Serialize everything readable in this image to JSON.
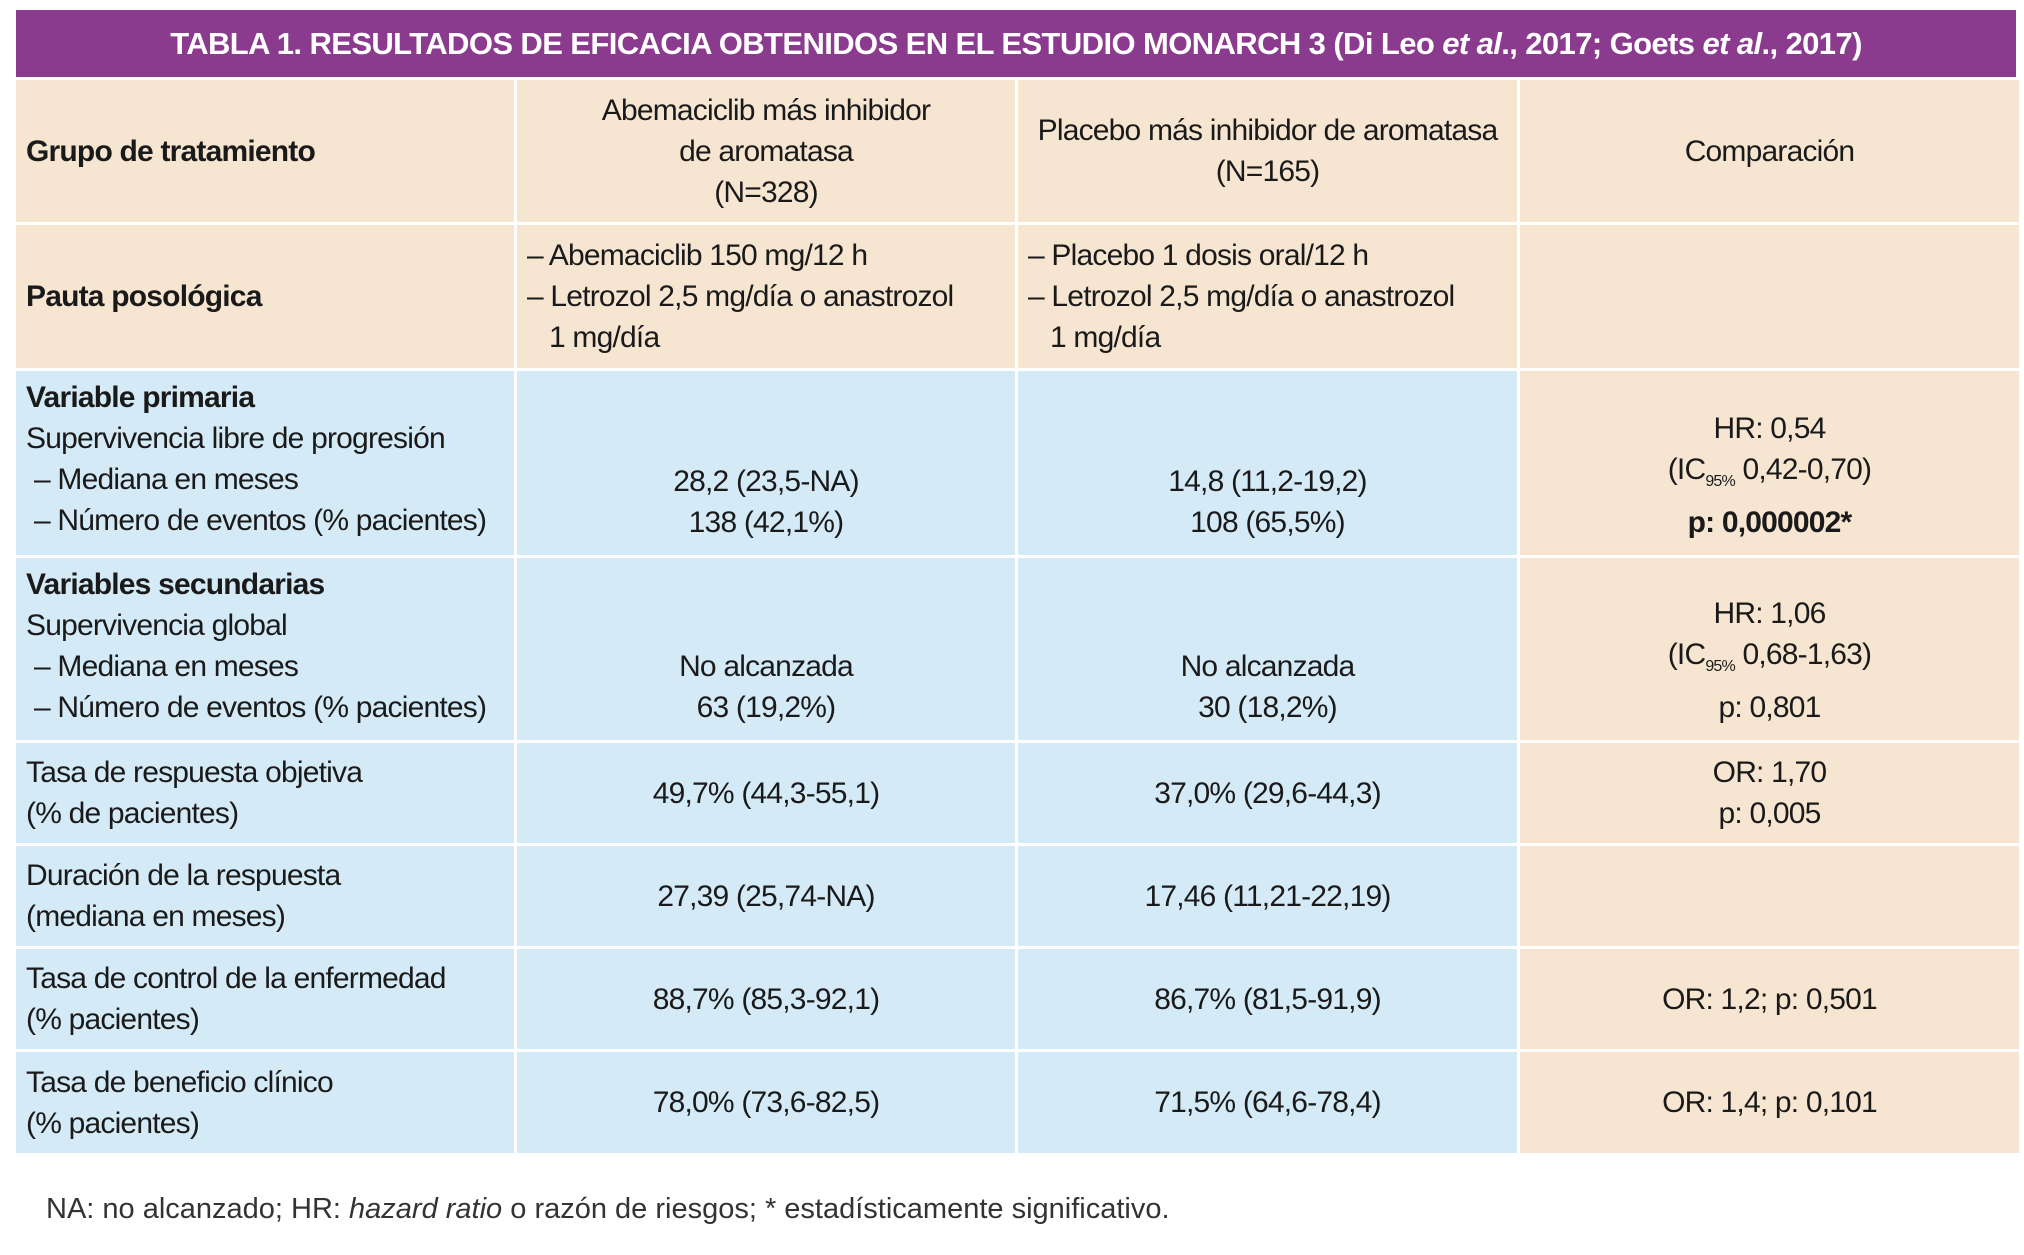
{
  "title": {
    "part1": "TABLA 1. RESULTADOS DE EFICACIA OBTENIDOS EN EL ESTUDIO MONARCH 3 (Di Leo ",
    "italic1": "et al",
    "part2": "., 2017; Goets ",
    "italic2": "et al",
    "part3": "., 2017)"
  },
  "table": {
    "header": {
      "label": [
        "Grupo de tratamiento"
      ],
      "abemaciclib": [
        "Abemaciclib más inhibidor",
        "de aromatasa",
        "(N=328)"
      ],
      "placebo": [
        "Placebo más inhibidor de aromatasa",
        "(N=165)"
      ],
      "comparison": [
        "Comparación"
      ]
    },
    "rows": [
      {
        "label": [
          "Pauta posológica"
        ],
        "abemaciclib": [
          "– Abemaciclib 150 mg/12 h",
          "– Letrozol 2,5 mg/día o anastrozol",
          "1 mg/día"
        ],
        "placebo": [
          "– Placebo 1 dosis oral/12 h",
          "– Letrozol 2,5 mg/día o anastrozol",
          "1 mg/día"
        ]
      },
      {
        "label": [
          "Variable primaria",
          "Supervivencia libre de progresión",
          "– Mediana en meses",
          "– Número de eventos (% pacientes)"
        ],
        "abemaciclib": [
          "28,2 (23,5-NA)",
          "138 (42,1%)"
        ],
        "placebo": [
          "14,8 (11,2-19,2)",
          "108 (65,5%)"
        ],
        "comparison": [
          "HR: 0,54",
          [
            "(IC",
            "95%",
            " 0,42-0,70)"
          ],
          "p: 0,000002*"
        ]
      },
      {
        "label": [
          "Variables secundarias",
          "Supervivencia global",
          "– Mediana en meses",
          "– Número de eventos (% pacientes)"
        ],
        "abemaciclib": [
          "No alcanzada",
          "63 (19,2%)"
        ],
        "placebo": [
          "No alcanzada",
          "30 (18,2%)"
        ],
        "comparison": [
          "HR: 1,06",
          [
            "(IC",
            "95%",
            " 0,68-1,63)"
          ],
          "p: 0,801"
        ]
      },
      {
        "label": [
          "Tasa de respuesta objetiva",
          "(% de pacientes)"
        ],
        "abemaciclib": [
          "49,7% (44,3-55,1)"
        ],
        "placebo": [
          "37,0% (29,6-44,3)"
        ],
        "comparison": [
          "OR: 1,70",
          "p: 0,005"
        ]
      },
      {
        "label": [
          "Duración de la respuesta",
          "(mediana en meses)"
        ],
        "abemaciclib": [
          "27,39 (25,74-NA)"
        ],
        "placebo": [
          "17,46 (11,21-22,19)"
        ]
      },
      {
        "label": [
          "Tasa de control de la enfermedad",
          "(% pacientes)"
        ],
        "abemaciclib": [
          "88,7% (85,3-92,1)"
        ],
        "placebo": [
          "86,7% (81,5-91,9)"
        ],
        "comparison": [
          "OR: 1,2; p: 0,501"
        ]
      },
      {
        "label": [
          "Tasa de beneficio clínico",
          "(% pacientes)"
        ],
        "abemaciclib": [
          "78,0% (73,6-82,5)"
        ],
        "placebo": [
          "71,5% (64,6-78,4)"
        ],
        "comparison": [
          "OR: 1,4; p: 0,101"
        ]
      }
    ]
  },
  "footnote": {
    "part1": "NA: no alcanzado; HR: ",
    "italic": "hazard ratio",
    "part2": " o razón de riesgos; * estadísticamente significativo."
  }
}
